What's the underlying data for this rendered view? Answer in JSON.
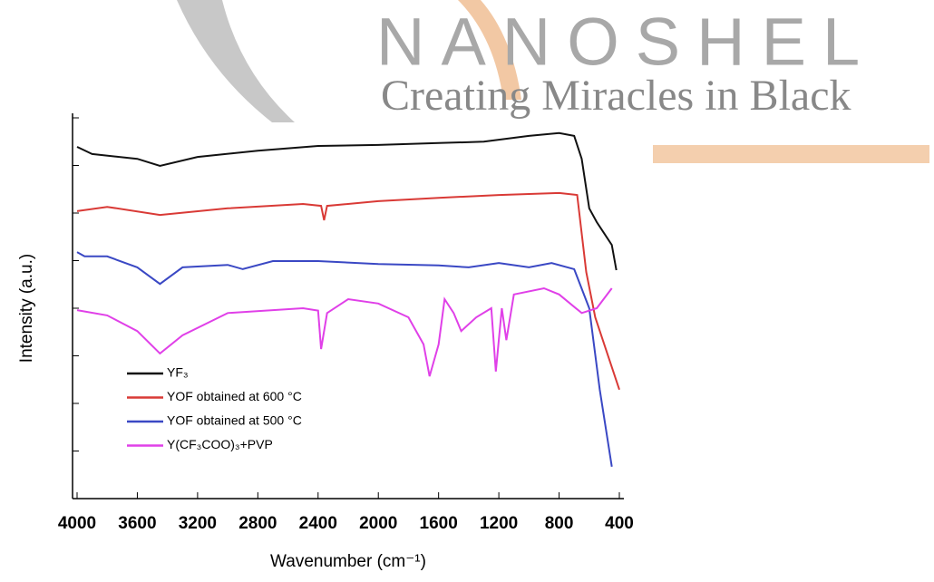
{
  "watermark": {
    "title": "NANOSHEL",
    "subtitle": "Creating Miracles in Black"
  },
  "chart_data": {
    "type": "line",
    "xlabel": "Wavenumber (cm⁻¹)",
    "ylabel": "Intensity (a.u.)",
    "xlim": [
      4000,
      400
    ],
    "xticks": [
      4000,
      3600,
      3200,
      2800,
      2400,
      2000,
      1600,
      1200,
      800,
      400
    ],
    "ylim": [
      0,
      8
    ],
    "yticks": [
      0,
      1,
      2,
      3,
      4,
      5,
      6,
      7,
      8
    ],
    "ytick_labels": false,
    "series": [
      {
        "name": "YF₃",
        "color": "#111111",
        "x": [
          4000,
          3900,
          3600,
          3450,
          3200,
          2800,
          2400,
          2000,
          1600,
          1300,
          1000,
          800,
          700,
          650,
          600,
          550,
          450,
          420
        ],
        "values": [
          7.39,
          7.24,
          7.14,
          6.99,
          7.18,
          7.31,
          7.41,
          7.43,
          7.47,
          7.5,
          7.62,
          7.68,
          7.62,
          7.14,
          6.1,
          5.81,
          5.33,
          4.8
        ]
      },
      {
        "name": "YOF obtained at 600 °C",
        "color": "#d93a36",
        "x": [
          4000,
          3800,
          3450,
          3000,
          2500,
          2380,
          2360,
          2340,
          2000,
          1600,
          1200,
          800,
          680,
          620,
          560,
          480,
          400
        ],
        "values": [
          6.04,
          6.13,
          5.96,
          6.1,
          6.19,
          6.15,
          5.85,
          6.15,
          6.25,
          6.32,
          6.38,
          6.42,
          6.38,
          4.76,
          3.81,
          3.05,
          2.29
        ]
      },
      {
        "name": "YOF obtained at 500 °C",
        "color": "#3a48c4",
        "x": [
          4000,
          3950,
          3800,
          3600,
          3450,
          3300,
          3000,
          2900,
          2700,
          2400,
          2000,
          1600,
          1400,
          1200,
          1000,
          850,
          700,
          600,
          530,
          450
        ],
        "values": [
          5.18,
          5.09,
          5.09,
          4.86,
          4.51,
          4.86,
          4.91,
          4.82,
          4.99,
          4.99,
          4.93,
          4.9,
          4.86,
          4.95,
          4.86,
          4.95,
          4.82,
          4.0,
          2.29,
          0.67
        ]
      },
      {
        "name": "Y(CF₃COO)₃+PVP",
        "color": "#e040e8",
        "x": [
          4000,
          3800,
          3600,
          3450,
          3300,
          3000,
          2500,
          2400,
          2380,
          2340,
          2200,
          2000,
          1800,
          1700,
          1660,
          1600,
          1560,
          1500,
          1450,
          1350,
          1250,
          1220,
          1180,
          1150,
          1100,
          900,
          800,
          650,
          550,
          450
        ],
        "values": [
          3.96,
          3.85,
          3.52,
          3.05,
          3.43,
          3.9,
          4.0,
          3.95,
          3.14,
          3.9,
          4.19,
          4.1,
          3.81,
          3.24,
          2.57,
          3.24,
          4.19,
          3.9,
          3.52,
          3.81,
          4.0,
          2.67,
          4.0,
          3.33,
          4.29,
          4.42,
          4.29,
          3.9,
          4.0,
          4.42
        ]
      }
    ]
  }
}
